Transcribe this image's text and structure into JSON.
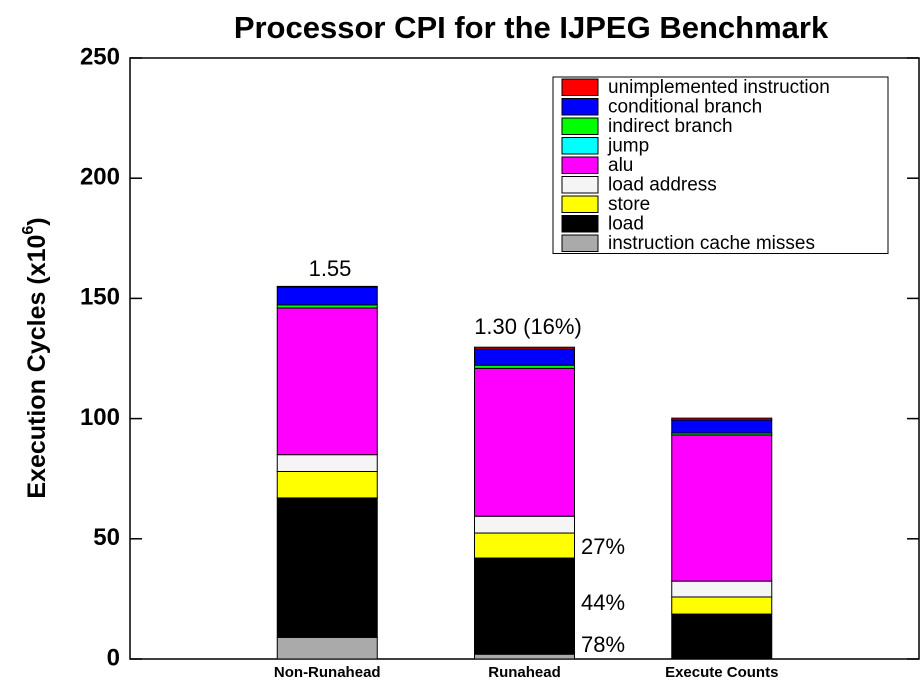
{
  "chart_data": {
    "type": "stacked_bar",
    "title": "Processor CPI for the IJPEG Benchmark",
    "ylabel": [
      "Execution Cycles (x10",
      "6",
      ")"
    ],
    "categories": [
      "Non-Runahead",
      "Runahead",
      "Execute Counts"
    ],
    "series": [
      {
        "name": "instruction cache misses",
        "color": "#aaaaaa",
        "values": [
          9,
          2,
          0
        ]
      },
      {
        "name": "load",
        "color": "#000000",
        "values": [
          58,
          40,
          18.7
        ]
      },
      {
        "name": "store",
        "color": "#ffff00",
        "values": [
          11,
          10.4,
          7.1
        ]
      },
      {
        "name": "load address",
        "color": "#f5f5f5",
        "values": [
          7,
          7,
          6.6
        ]
      },
      {
        "name": "alu",
        "color": "#ff00ff",
        "values": [
          61,
          61.5,
          60.8
        ]
      },
      {
        "name": "jump",
        "color": "#00ffff",
        "values": [
          0,
          0,
          0
        ]
      },
      {
        "name": "indirect branch",
        "color": "#00ff00",
        "values": [
          1.3,
          1.3,
          0.8
        ]
      },
      {
        "name": "conditional branch",
        "color": "#0000ff",
        "values": [
          7.4,
          6.7,
          5.4
        ]
      },
      {
        "name": "unimplemented instruction",
        "color": "#ff0000",
        "values": [
          0.3,
          0.8,
          0.8
        ]
      }
    ],
    "annotations": [
      "1.55",
      "1.30 (16%)",
      "27%",
      "44%",
      "78%"
    ],
    "ylim": [
      0,
      250
    ],
    "yticks": [
      0,
      50,
      100,
      150,
      200,
      250
    ],
    "legend": "upper right"
  }
}
